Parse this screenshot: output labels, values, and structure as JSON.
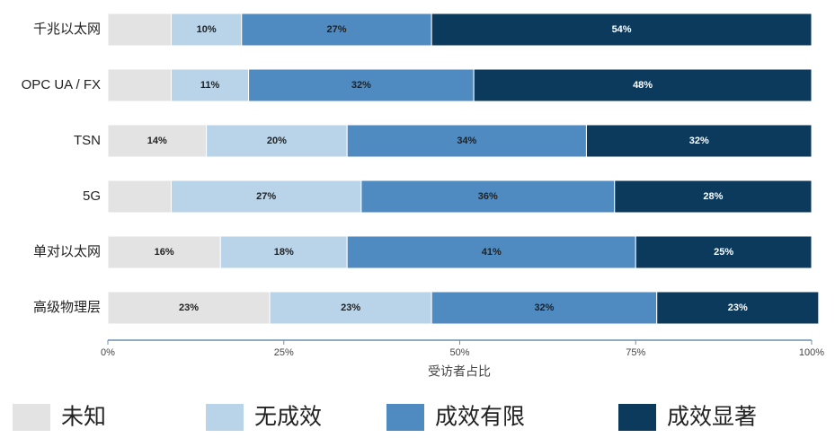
{
  "chart_data": {
    "type": "stacked-bar-horizontal",
    "categories": [
      "千兆以太网",
      "OPC UA / FX",
      "TSN",
      "5G",
      "单对以太网",
      "高级物理层"
    ],
    "series": [
      {
        "name": "未知",
        "color": "#e3e3e3",
        "values": [
          9,
          9,
          14,
          9,
          16,
          23
        ],
        "value_labels": [
          null,
          null,
          "14%",
          null,
          "16%",
          "23%"
        ]
      },
      {
        "name": "无成效",
        "color": "#b9d4e9",
        "values": [
          10,
          11,
          20,
          27,
          18,
          23
        ],
        "value_labels": [
          "10%",
          "11%",
          "20%",
          "27%",
          "18%",
          "23%"
        ]
      },
      {
        "name": "成效有限",
        "color": "#4f8bc1",
        "values": [
          27,
          32,
          34,
          36,
          41,
          32
        ],
        "value_labels": [
          "27%",
          "32%",
          "34%",
          "36%",
          "41%",
          "32%"
        ]
      },
      {
        "name": "成效显著",
        "color": "#0b3a5d",
        "values": [
          54,
          48,
          32,
          28,
          25,
          23
        ],
        "value_labels": [
          "54%",
          "48%",
          "32%",
          "28%",
          "25%",
          "23%"
        ]
      }
    ],
    "xlabel": "受访者占比",
    "xlim": [
      0,
      100
    ],
    "xticks": [
      {
        "value": 0,
        "label": "0%"
      },
      {
        "value": 25,
        "label": "25%"
      },
      {
        "value": 50,
        "label": "50%"
      },
      {
        "value": 75,
        "label": "75%"
      },
      {
        "value": 100,
        "label": "100%"
      }
    ],
    "legend": "bottom"
  }
}
